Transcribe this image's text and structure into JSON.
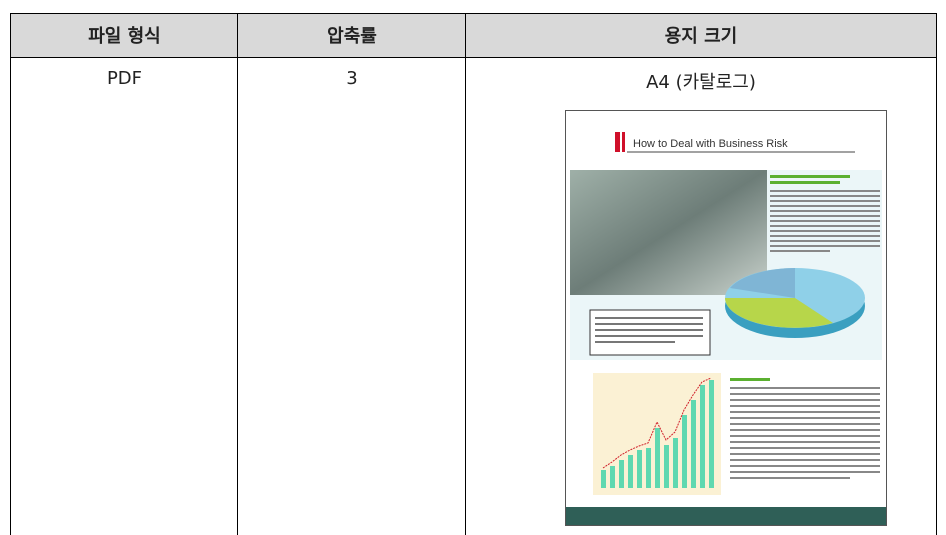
{
  "table": {
    "headers": [
      "파일 형식",
      "압축률",
      "용지 크기"
    ],
    "rows": [
      [
        "PDF",
        "3",
        "A4 (카탈로그)"
      ]
    ]
  },
  "thumbnail": {
    "title": "How to Deal with Business Risk"
  }
}
